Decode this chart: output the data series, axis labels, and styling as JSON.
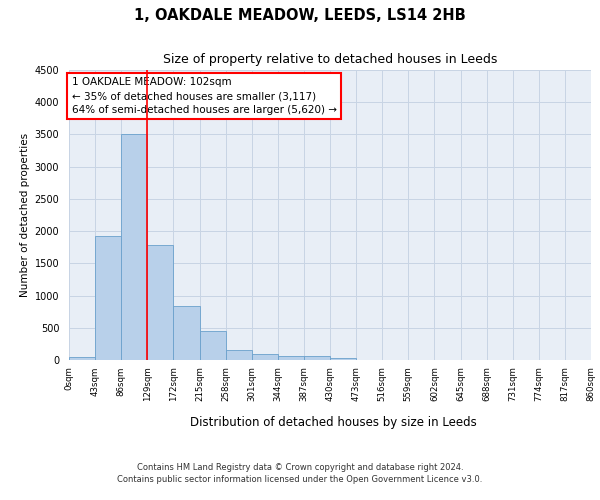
{
  "title": "1, OAKDALE MEADOW, LEEDS, LS14 2HB",
  "subtitle": "Size of property relative to detached houses in Leeds",
  "xlabel": "Distribution of detached houses by size in Leeds",
  "ylabel": "Number of detached properties",
  "bin_labels": [
    "0sqm",
    "43sqm",
    "86sqm",
    "129sqm",
    "172sqm",
    "215sqm",
    "258sqm",
    "301sqm",
    "344sqm",
    "387sqm",
    "430sqm",
    "473sqm",
    "516sqm",
    "559sqm",
    "602sqm",
    "645sqm",
    "688sqm",
    "731sqm",
    "774sqm",
    "817sqm",
    "860sqm"
  ],
  "bar_values": [
    40,
    1920,
    3510,
    1780,
    840,
    450,
    160,
    95,
    65,
    55,
    35,
    0,
    0,
    0,
    0,
    0,
    0,
    0,
    0,
    0
  ],
  "bar_color": "#b8d0ea",
  "bar_edge_color": "#6aa0cc",
  "grid_color": "#c8d4e4",
  "background_color": "#e8eef6",
  "red_line_x": 2.5,
  "annotation_text": "1 OAKDALE MEADOW: 102sqm\n← 35% of detached houses are smaller (3,117)\n64% of semi-detached houses are larger (5,620) →",
  "annotation_box_color": "white",
  "annotation_box_edge_color": "red",
  "ylim": [
    0,
    4500
  ],
  "yticks": [
    0,
    500,
    1000,
    1500,
    2000,
    2500,
    3000,
    3500,
    4000,
    4500
  ],
  "footer_line1": "Contains HM Land Registry data © Crown copyright and database right 2024.",
  "footer_line2": "Contains public sector information licensed under the Open Government Licence v3.0."
}
